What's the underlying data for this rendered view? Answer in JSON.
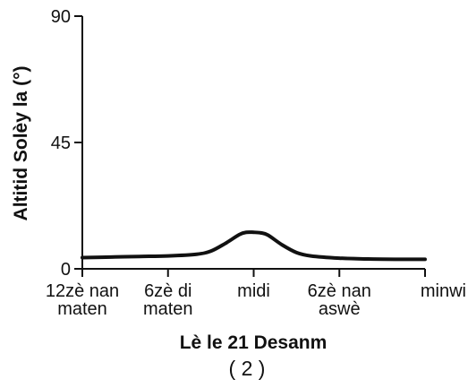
{
  "chart_data": {
    "type": "line",
    "title": "",
    "xlabel": "Lè le 21 Desanm",
    "ylabel": "Altitid Solèy la (°)",
    "panel_label": "( 2 )",
    "x_ticks": [
      {
        "value": 0,
        "lines": [
          "12zè nan",
          "maten"
        ]
      },
      {
        "value": 6,
        "lines": [
          "6zè di",
          "maten"
        ]
      },
      {
        "value": 12,
        "lines": [
          "midi"
        ]
      },
      {
        "value": 18,
        "lines": [
          "6zè nan",
          "aswè"
        ]
      },
      {
        "value": 24,
        "lines": [
          "minwi"
        ]
      }
    ],
    "y_ticks": [
      0,
      45,
      90
    ],
    "xlim": [
      0,
      24
    ],
    "ylim": [
      0,
      90
    ],
    "grid": false,
    "series": [
      {
        "color": "#111111",
        "x": [
          0,
          2,
          4,
          6,
          8,
          9,
          10,
          11,
          11.5,
          12,
          12.5,
          13,
          14,
          15,
          16,
          18,
          20,
          22,
          24
        ],
        "y": [
          4,
          4.2,
          4.4,
          4.6,
          5.2,
          6.3,
          9,
          12.2,
          13,
          13,
          12.8,
          12,
          8.5,
          5.8,
          4.6,
          3.8,
          3.5,
          3.4,
          3.4
        ]
      }
    ]
  }
}
